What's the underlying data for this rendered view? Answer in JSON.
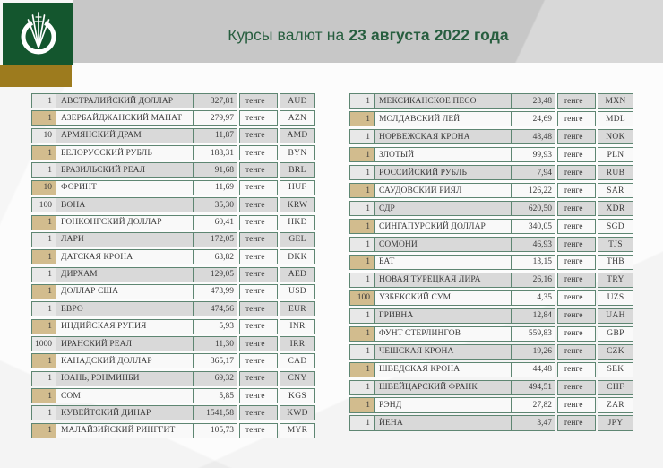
{
  "header": {
    "title_prefix": "Курсы валют на ",
    "title_date": "23 августа 2022 года",
    "logo_icon": "national-bank-of-kazakhstan-wheat-sheaf-emblem"
  },
  "unit_label": "тенге",
  "left_table": {
    "rows": [
      {
        "qty": "1",
        "name": "АВСТРАЛИЙСКИЙ ДОЛЛАР",
        "value": "327,81",
        "unit": "тенге",
        "code": "AUD"
      },
      {
        "qty": "1",
        "name": "АЗЕРБАЙДЖАНСКИЙ МАНАТ",
        "value": "279,97",
        "unit": "тенге",
        "code": "AZN"
      },
      {
        "qty": "10",
        "name": "АРМЯНСКИЙ ДРАМ",
        "value": "11,87",
        "unit": "тенге",
        "code": "AMD"
      },
      {
        "qty": "1",
        "name": "БЕЛОРУССКИЙ РУБЛЬ",
        "value": "188,31",
        "unit": "тенге",
        "code": "BYN"
      },
      {
        "qty": "1",
        "name": "БРАЗИЛЬСКИЙ РЕАЛ",
        "value": "91,68",
        "unit": "тенге",
        "code": "BRL"
      },
      {
        "qty": "10",
        "name": "ФОРИНТ",
        "value": "11,69",
        "unit": "тенге",
        "code": "HUF"
      },
      {
        "qty": "100",
        "name": "ВОНА",
        "value": "35,30",
        "unit": "тенге",
        "code": "KRW"
      },
      {
        "qty": "1",
        "name": "ГОНКОНГСКИЙ ДОЛЛАР",
        "value": "60,41",
        "unit": "тенге",
        "code": "HKD"
      },
      {
        "qty": "1",
        "name": "ЛАРИ",
        "value": "172,05",
        "unit": "тенге",
        "code": "GEL"
      },
      {
        "qty": "1",
        "name": "ДАТСКАЯ КРОНА",
        "value": "63,82",
        "unit": "тенге",
        "code": "DKK"
      },
      {
        "qty": "1",
        "name": "ДИРХАМ",
        "value": "129,05",
        "unit": "тенге",
        "code": "AED"
      },
      {
        "qty": "1",
        "name": "ДОЛЛАР США",
        "value": "473,99",
        "unit": "тенге",
        "code": "USD"
      },
      {
        "qty": "1",
        "name": "ЕВРО",
        "value": "474,56",
        "unit": "тенге",
        "code": "EUR"
      },
      {
        "qty": "1",
        "name": "ИНДИЙСКАЯ РУПИЯ",
        "value": "5,93",
        "unit": "тенге",
        "code": "INR"
      },
      {
        "qty": "1000",
        "name": "ИРАНСКИЙ РЕАЛ",
        "value": "11,30",
        "unit": "тенге",
        "code": "IRR"
      },
      {
        "qty": "1",
        "name": "КАНАДСКИЙ ДОЛЛАР",
        "value": "365,17",
        "unit": "тенге",
        "code": "CAD"
      },
      {
        "qty": "1",
        "name": "ЮАНЬ, РЭНМИНБИ",
        "value": "69,32",
        "unit": "тенге",
        "code": "CNY"
      },
      {
        "qty": "1",
        "name": "СОМ",
        "value": "5,85",
        "unit": "тенге",
        "code": "KGS"
      },
      {
        "qty": "1",
        "name": "КУВЕЙТСКИЙ ДИНАР",
        "value": "1541,58",
        "unit": "тенге",
        "code": "KWD"
      },
      {
        "qty": "1",
        "name": "МАЛАЙЗИЙСКИЙ РИНГГИТ",
        "value": "105,73",
        "unit": "тенге",
        "code": "MYR"
      }
    ]
  },
  "right_table": {
    "rows": [
      {
        "qty": "1",
        "name": "МЕКСИКАНСКОЕ ПЕСО",
        "value": "23,48",
        "unit": "тенге",
        "code": "MXN"
      },
      {
        "qty": "1",
        "name": "МОЛДАВСКИЙ ЛЕЙ",
        "value": "24,69",
        "unit": "тенге",
        "code": "MDL"
      },
      {
        "qty": "1",
        "name": "НОРВЕЖСКАЯ КРОНА",
        "value": "48,48",
        "unit": "тенге",
        "code": "NOK"
      },
      {
        "qty": "1",
        "name": "ЗЛОТЫЙ",
        "value": "99,93",
        "unit": "тенге",
        "code": "PLN"
      },
      {
        "qty": "1",
        "name": "РОССИЙСКИЙ РУБЛЬ",
        "value": "7,94",
        "unit": "тенге",
        "code": "RUB"
      },
      {
        "qty": "1",
        "name": "САУДОВСКИЙ РИЯЛ",
        "value": "126,22",
        "unit": "тенге",
        "code": "SAR"
      },
      {
        "qty": "1",
        "name": "СДР",
        "value": "620,50",
        "unit": "тенге",
        "code": "XDR"
      },
      {
        "qty": "1",
        "name": "СИНГАПУРСКИЙ ДОЛЛАР",
        "value": "340,05",
        "unit": "тенге",
        "code": "SGD"
      },
      {
        "qty": "1",
        "name": "СОМОНИ",
        "value": "46,93",
        "unit": "тенге",
        "code": "TJS"
      },
      {
        "qty": "1",
        "name": "БАТ",
        "value": "13,15",
        "unit": "тенге",
        "code": "THB"
      },
      {
        "qty": "1",
        "name": "НОВАЯ ТУРЕЦКАЯ ЛИРА",
        "value": "26,16",
        "unit": "тенге",
        "code": "TRY"
      },
      {
        "qty": "100",
        "name": "УЗБЕКСКИЙ СУМ",
        "value": "4,35",
        "unit": "тенге",
        "code": "UZS"
      },
      {
        "qty": "1",
        "name": "ГРИВНА",
        "value": "12,84",
        "unit": "тенге",
        "code": "UAH"
      },
      {
        "qty": "1",
        "name": "ФУНТ СТЕРЛИНГОВ",
        "value": "559,83",
        "unit": "тенге",
        "code": "GBP"
      },
      {
        "qty": "1",
        "name": "ЧЕШСКАЯ КРОНА",
        "value": "19,26",
        "unit": "тенге",
        "code": "CZK"
      },
      {
        "qty": "1",
        "name": "ШВЕДСКАЯ КРОНА",
        "value": "44,48",
        "unit": "тенге",
        "code": "SEK"
      },
      {
        "qty": "1",
        "name": "ШВЕЙЦАРСКИЙ ФРАНК",
        "value": "494,51",
        "unit": "тенге",
        "code": "CHF"
      },
      {
        "qty": "1",
        "name": "РЭНД",
        "value": "27,82",
        "unit": "тенге",
        "code": "ZAR"
      },
      {
        "qty": "1",
        "name": "ЙЕНА",
        "value": "3,47",
        "unit": "тенге",
        "code": "JPY"
      }
    ]
  },
  "colors": {
    "logo_green": "#14562e",
    "gold_accent": "#9d7b1e",
    "header_gray": "#c7c7c7",
    "title_green": "#275e3f",
    "table_border_green": "#5e8672",
    "row_gray": "#d9d9d9",
    "row_light": "#f9f9f9",
    "qty_beige": "#d2bc8e",
    "qty_light_gray": "#e8e8e8"
  }
}
